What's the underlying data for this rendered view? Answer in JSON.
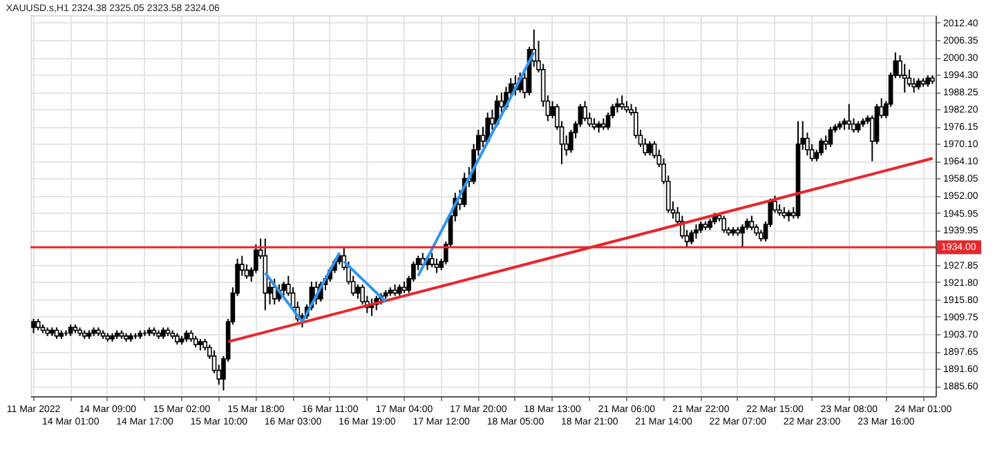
{
  "chart_data": {
    "type": "candlestick",
    "title": "XAUUSD.s,H1  2324.38 2325.05 2323.58 2324.06",
    "categories": [
      "11 Mar 2022",
      null,
      null,
      null,
      null,
      null,
      null,
      null,
      "14 Mar 01:00",
      null,
      null,
      null,
      null,
      null,
      null,
      null,
      "14 Mar 09:00",
      null,
      null,
      null,
      null,
      null,
      null,
      null,
      "14 Mar 17:00",
      null,
      null,
      null,
      null,
      null,
      null,
      null,
      "15 Mar 02:00",
      null,
      null,
      null,
      null,
      null,
      null,
      null,
      "15 Mar 10:00",
      null,
      null,
      null,
      null,
      null,
      null,
      null,
      "15 Mar 18:00",
      null,
      null,
      null,
      null,
      null,
      null,
      null,
      "16 Mar 03:00",
      null,
      null,
      null,
      null,
      null,
      null,
      null,
      "16 Mar 11:00",
      null,
      null,
      null,
      null,
      null,
      null,
      null,
      "16 Mar 19:00",
      null,
      null,
      null,
      null,
      null,
      null,
      null,
      "17 Mar 04:00",
      null,
      null,
      null,
      null,
      null,
      null,
      null,
      "17 Mar 12:00",
      null,
      null,
      null,
      null,
      null,
      null,
      null,
      "17 Mar 20:00",
      null,
      null,
      null,
      null,
      null,
      null,
      null,
      "18 Mar 05:00",
      null,
      null,
      null,
      null,
      null,
      null,
      null,
      "18 Mar 13:00",
      null,
      null,
      null,
      null,
      null,
      null,
      null,
      "18 Mar 21:00",
      null,
      null,
      null,
      null,
      null,
      null,
      null,
      "21 Mar 06:00",
      null,
      null,
      null,
      null,
      null,
      null,
      null,
      "21 Mar 14:00",
      null,
      null,
      null,
      null,
      null,
      null,
      null,
      "21 Mar 22:00",
      null,
      null,
      null,
      null,
      null,
      null,
      null,
      "22 Mar 07:00",
      null,
      null,
      null,
      null,
      null,
      null,
      null,
      "22 Mar 15:00",
      null,
      null,
      null,
      null,
      null,
      null,
      null,
      "22 Mar 23:00",
      null,
      null,
      null,
      null,
      null,
      null,
      null,
      "23 Mar 08:00",
      null,
      null,
      null,
      null,
      null,
      null,
      null,
      "23 Mar 16:00",
      null,
      null,
      null,
      null,
      null,
      null,
      null,
      "24 Mar 01:00",
      null,
      null
    ],
    "ohlc": [
      [
        1906,
        1909,
        1904,
        1908
      ],
      [
        1908,
        1909,
        1905,
        1906
      ],
      [
        1906,
        1907,
        1904,
        1905
      ],
      [
        1905,
        1906,
        1903,
        1904
      ],
      [
        1904,
        1906,
        1903,
        1905
      ],
      [
        1905,
        1906,
        1902,
        1903
      ],
      [
        1903,
        1905,
        1902,
        1904
      ],
      [
        1904,
        1905,
        1903,
        1904
      ],
      [
        1904,
        1907,
        1903,
        1906
      ],
      [
        1906,
        1907,
        1904,
        1905
      ],
      [
        1905,
        1906,
        1903,
        1904
      ],
      [
        1904,
        1905,
        1902,
        1903
      ],
      [
        1903,
        1905,
        1902,
        1904
      ],
      [
        1904,
        1906,
        1903,
        1905
      ],
      [
        1905,
        1906,
        1903,
        1904
      ],
      [
        1904,
        1905,
        1902,
        1903
      ],
      [
        1903,
        1904,
        1901,
        1902
      ],
      [
        1902,
        1904,
        1901,
        1903
      ],
      [
        1903,
        1905,
        1902,
        1904
      ],
      [
        1904,
        1905,
        1902,
        1903
      ],
      [
        1903,
        1904,
        1901,
        1902
      ],
      [
        1902,
        1904,
        1901,
        1903
      ],
      [
        1903,
        1904,
        1902,
        1903
      ],
      [
        1903,
        1905,
        1902,
        1904
      ],
      [
        1904,
        1905,
        1903,
        1904
      ],
      [
        1904,
        1906,
        1903,
        1905
      ],
      [
        1905,
        1906,
        1903,
        1904
      ],
      [
        1904,
        1905,
        1902,
        1903
      ],
      [
        1903,
        1906,
        1902,
        1905
      ],
      [
        1905,
        1906,
        1903,
        1904
      ],
      [
        1904,
        1905,
        1902,
        1903
      ],
      [
        1903,
        1904,
        1900,
        1901
      ],
      [
        1901,
        1903,
        1900,
        1902
      ],
      [
        1902,
        1905,
        1901,
        1904
      ],
      [
        1904,
        1905,
        1901,
        1902
      ],
      [
        1902,
        1903,
        1899,
        1900
      ],
      [
        1900,
        1902,
        1898,
        1901
      ],
      [
        1901,
        1902,
        1898,
        1899
      ],
      [
        1899,
        1900,
        1895,
        1896
      ],
      [
        1896,
        1898,
        1890,
        1891
      ],
      [
        1891,
        1893,
        1886,
        1888
      ],
      [
        1888,
        1896,
        1884,
        1895
      ],
      [
        1895,
        1909,
        1894,
        1908
      ],
      [
        1908,
        1920,
        1907,
        1918
      ],
      [
        1918,
        1930,
        1917,
        1928
      ],
      [
        1928,
        1931,
        1924,
        1926
      ],
      [
        1926,
        1928,
        1923,
        1924
      ],
      [
        1924,
        1927,
        1922,
        1926
      ],
      [
        1926,
        1935,
        1925,
        1933
      ],
      [
        1933,
        1937,
        1930,
        1931
      ],
      [
        1931,
        1937,
        1912,
        1918
      ],
      [
        1918,
        1922,
        1914,
        1920
      ],
      [
        1920,
        1923,
        1914,
        1916
      ],
      [
        1916,
        1921,
        1915,
        1919
      ],
      [
        1919,
        1922,
        1917,
        1921
      ],
      [
        1921,
        1924,
        1917,
        1918
      ],
      [
        1918,
        1920,
        1912,
        1913
      ],
      [
        1913,
        1915,
        1908,
        1909
      ],
      [
        1909,
        1911,
        1906,
        1910
      ],
      [
        1910,
        1914,
        1909,
        1913
      ],
      [
        1913,
        1922,
        1912,
        1920
      ],
      [
        1920,
        1922,
        1914,
        1916
      ],
      [
        1916,
        1922,
        1915,
        1921
      ],
      [
        1921,
        1924,
        1919,
        1923
      ],
      [
        1923,
        1927,
        1922,
        1926
      ],
      [
        1926,
        1930,
        1925,
        1929
      ],
      [
        1929,
        1932,
        1928,
        1931
      ],
      [
        1931,
        1934,
        1926,
        1927
      ],
      [
        1927,
        1929,
        1921,
        1922
      ],
      [
        1922,
        1924,
        1917,
        1918
      ],
      [
        1918,
        1921,
        1916,
        1920
      ],
      [
        1920,
        1921,
        1914,
        1915
      ],
      [
        1915,
        1917,
        1911,
        1913
      ],
      [
        1913,
        1916,
        1910,
        1914
      ],
      [
        1914,
        1917,
        1912,
        1916
      ],
      [
        1916,
        1918,
        1914,
        1917
      ],
      [
        1917,
        1919,
        1916,
        1918
      ],
      [
        1918,
        1920,
        1917,
        1919
      ],
      [
        1919,
        1921,
        1917,
        1918
      ],
      [
        1918,
        1921,
        1917,
        1920
      ],
      [
        1920,
        1922,
        1918,
        1919
      ],
      [
        1919,
        1924,
        1918,
        1923
      ],
      [
        1923,
        1929,
        1922,
        1928
      ],
      [
        1928,
        1931,
        1926,
        1930
      ],
      [
        1930,
        1932,
        1927,
        1928
      ],
      [
        1928,
        1931,
        1926,
        1930
      ],
      [
        1930,
        1932,
        1927,
        1928
      ],
      [
        1928,
        1930,
        1925,
        1927
      ],
      [
        1927,
        1930,
        1926,
        1929
      ],
      [
        1929,
        1936,
        1928,
        1935
      ],
      [
        1935,
        1946,
        1934,
        1945
      ],
      [
        1945,
        1953,
        1943,
        1951
      ],
      [
        1951,
        1954,
        1947,
        1949
      ],
      [
        1949,
        1960,
        1948,
        1958
      ],
      [
        1958,
        1962,
        1955,
        1957
      ],
      [
        1957,
        1970,
        1956,
        1968
      ],
      [
        1968,
        1975,
        1966,
        1973
      ],
      [
        1973,
        1976,
        1969,
        1971
      ],
      [
        1971,
        1981,
        1970,
        1979
      ],
      [
        1979,
        1982,
        1975,
        1977
      ],
      [
        1977,
        1987,
        1976,
        1985
      ],
      [
        1985,
        1988,
        1981,
        1983
      ],
      [
        1983,
        1990,
        1982,
        1988
      ],
      [
        1988,
        1993,
        1986,
        1991
      ],
      [
        1991,
        1994,
        1987,
        1989
      ],
      [
        1989,
        1995,
        1988,
        1993
      ],
      [
        1993,
        1995,
        1986,
        1988
      ],
      [
        1988,
        2004,
        1987,
        2003
      ],
      [
        2003,
        2010,
        1997,
        1999
      ],
      [
        1999,
        2006,
        1995,
        1996
      ],
      [
        1996,
        1998,
        1983,
        1985
      ],
      [
        1985,
        1987,
        1978,
        1980
      ],
      [
        1980,
        1985,
        1979,
        1983
      ],
      [
        1983,
        1984,
        1975,
        1976
      ],
      [
        1976,
        1978,
        1963,
        1970
      ],
      [
        1970,
        1973,
        1966,
        1968
      ],
      [
        1968,
        1975,
        1967,
        1974
      ],
      [
        1974,
        1978,
        1972,
        1977
      ],
      [
        1977,
        1984,
        1976,
        1983
      ],
      [
        1983,
        1985,
        1978,
        1979
      ],
      [
        1979,
        1981,
        1976,
        1977
      ],
      [
        1977,
        1979,
        1975,
        1976
      ],
      [
        1976,
        1978,
        1974,
        1977
      ],
      [
        1977,
        1979,
        1975,
        1976
      ],
      [
        1976,
        1981,
        1975,
        1980
      ],
      [
        1980,
        1984,
        1979,
        1983
      ],
      [
        1983,
        1986,
        1981,
        1984
      ],
      [
        1984,
        1987,
        1982,
        1983
      ],
      [
        1983,
        1985,
        1981,
        1982
      ],
      [
        1982,
        1984,
        1980,
        1981
      ],
      [
        1981,
        1983,
        1972,
        1973
      ],
      [
        1973,
        1975,
        1969,
        1970
      ],
      [
        1970,
        1972,
        1966,
        1967
      ],
      [
        1967,
        1971,
        1966,
        1970
      ],
      [
        1970,
        1971,
        1965,
        1966
      ],
      [
        1966,
        1968,
        1962,
        1963
      ],
      [
        1963,
        1965,
        1956,
        1957
      ],
      [
        1957,
        1959,
        1946,
        1947
      ],
      [
        1947,
        1950,
        1944,
        1946
      ],
      [
        1946,
        1948,
        1942,
        1943
      ],
      [
        1943,
        1945,
        1937,
        1938
      ],
      [
        1938,
        1940,
        1934,
        1936
      ],
      [
        1936,
        1940,
        1935,
        1939
      ],
      [
        1939,
        1942,
        1937,
        1940
      ],
      [
        1940,
        1943,
        1939,
        1942
      ],
      [
        1942,
        1943,
        1940,
        1941
      ],
      [
        1941,
        1944,
        1940,
        1943
      ],
      [
        1943,
        1946,
        1942,
        1945
      ],
      [
        1945,
        1946,
        1943,
        1944
      ],
      [
        1944,
        1945,
        1939,
        1940
      ],
      [
        1940,
        1941,
        1938,
        1939
      ],
      [
        1939,
        1941,
        1938,
        1940
      ],
      [
        1940,
        1941,
        1938,
        1939
      ],
      [
        1939,
        1942,
        1934,
        1941
      ],
      [
        1941,
        1944,
        1940,
        1943
      ],
      [
        1943,
        1945,
        1940,
        1941
      ],
      [
        1941,
        1942,
        1938,
        1939
      ],
      [
        1939,
        1940,
        1936,
        1937
      ],
      [
        1937,
        1943,
        1936,
        1942
      ],
      [
        1942,
        1951,
        1941,
        1950
      ],
      [
        1950,
        1952,
        1946,
        1947
      ],
      [
        1947,
        1949,
        1945,
        1946
      ],
      [
        1946,
        1948,
        1944,
        1945
      ],
      [
        1945,
        1947,
        1943,
        1946
      ],
      [
        1946,
        1948,
        1944,
        1945
      ],
      [
        1945,
        1978,
        1944,
        1970
      ],
      [
        1970,
        1978,
        1968,
        1972
      ],
      [
        1972,
        1974,
        1966,
        1968
      ],
      [
        1968,
        1970,
        1964,
        1965
      ],
      [
        1965,
        1968,
        1964,
        1967
      ],
      [
        1967,
        1972,
        1966,
        1971
      ],
      [
        1971,
        1973,
        1968,
        1970
      ],
      [
        1970,
        1976,
        1969,
        1975
      ],
      [
        1975,
        1977,
        1974,
        1976
      ],
      [
        1976,
        1978,
        1975,
        1977
      ],
      [
        1977,
        1979,
        1975,
        1978
      ],
      [
        1978,
        1984,
        1975,
        1977
      ],
      [
        1977,
        1979,
        1974,
        1975
      ],
      [
        1975,
        1978,
        1974,
        1977
      ],
      [
        1977,
        1979,
        1976,
        1978
      ],
      [
        1978,
        1980,
        1977,
        1979
      ],
      [
        1979,
        1980,
        1964,
        1971
      ],
      [
        1971,
        1984,
        1970,
        1983
      ],
      [
        1983,
        1986,
        1979,
        1980
      ],
      [
        1980,
        1985,
        1979,
        1984
      ],
      [
        1984,
        1995,
        1983,
        1994
      ],
      [
        1994,
        2002,
        1993,
        1999
      ],
      [
        1999,
        2001,
        1993,
        1994
      ],
      [
        1994,
        1998,
        1988,
        1993
      ],
      [
        1993,
        1996,
        1990,
        1991
      ],
      [
        1991,
        1993,
        1988,
        1990
      ],
      [
        1990,
        1993,
        1989,
        1992
      ],
      [
        1992,
        1993,
        1990,
        1991
      ],
      [
        1991,
        1994,
        1990,
        1993
      ],
      [
        1993,
        1994,
        1991,
        1992
      ]
    ],
    "series": [
      {
        "type": "line",
        "color": "#e8262b",
        "values": [
          null,
          null,
          null,
          null,
          null,
          null,
          null,
          null,
          null,
          null,
          null,
          null,
          null,
          null,
          null,
          null,
          null,
          null,
          null,
          null,
          null,
          null,
          null,
          null,
          null,
          null,
          null,
          null,
          null,
          null,
          null,
          null,
          null,
          null,
          null,
          null,
          null,
          null,
          null,
          null,
          null,
          null,
          1901,
          null,
          null,
          null,
          null,
          null,
          null,
          null,
          null,
          null,
          null,
          null,
          null,
          null,
          null,
          null,
          null,
          null,
          null,
          null,
          null,
          null,
          null,
          null,
          null,
          null,
          null,
          null,
          null,
          null,
          null,
          null,
          null,
          null,
          null,
          null,
          null,
          null,
          null,
          null,
          null,
          null,
          null,
          null,
          null,
          null,
          null,
          null,
          null,
          null,
          null,
          null,
          null,
          null,
          null,
          null,
          null,
          null,
          null,
          null,
          null,
          null,
          null,
          null,
          null,
          null,
          null,
          null,
          null,
          null,
          null,
          null,
          null,
          null,
          null,
          null,
          null,
          null,
          null,
          null,
          null,
          null,
          null,
          null,
          null,
          null,
          null,
          null,
          null,
          null,
          null,
          null,
          null,
          null,
          null,
          null,
          null,
          null,
          null,
          null,
          null,
          null,
          null,
          null,
          null,
          null,
          null,
          null,
          null,
          null,
          null,
          null,
          null,
          null,
          null,
          null,
          null,
          null,
          null,
          null,
          null,
          null,
          null,
          null,
          null,
          null,
          null,
          null,
          null,
          null,
          null,
          null,
          null,
          null,
          null,
          null,
          null,
          null,
          null,
          null,
          null,
          null,
          null,
          null,
          null,
          null,
          null,
          null,
          null,
          null,
          null,
          null,
          1965
        ]
      },
      {
        "type": "line",
        "color": "#2f96f0",
        "values": [
          null,
          null,
          null,
          null,
          null,
          null,
          null,
          null,
          null,
          null,
          null,
          null,
          null,
          null,
          null,
          null,
          null,
          null,
          null,
          null,
          null,
          null,
          null,
          null,
          null,
          null,
          null,
          null,
          null,
          null,
          null,
          null,
          null,
          null,
          null,
          null,
          null,
          null,
          null,
          null,
          null,
          null,
          null,
          null,
          null,
          null,
          null,
          null,
          null,
          null,
          1925,
          null,
          null,
          null,
          null,
          null,
          null,
          null,
          1908,
          null,
          null,
          null,
          null,
          null,
          null,
          null,
          null,
          null,
          null,
          null,
          null,
          null,
          null,
          null,
          null,
          null,
          null,
          null,
          null,
          null,
          null,
          null,
          null,
          null,
          null,
          null,
          null,
          null,
          null,
          null,
          null,
          null,
          null,
          null,
          null,
          null,
          null,
          null,
          null,
          null,
          null,
          null,
          null,
          null,
          null,
          null,
          null,
          null,
          null,
          null,
          null,
          null,
          null,
          null,
          null,
          null,
          null,
          null,
          null,
          null,
          null,
          null,
          null,
          null,
          null,
          null,
          null,
          null,
          null,
          null,
          null,
          null,
          null,
          null,
          null,
          null,
          null,
          null,
          null,
          null,
          null,
          null,
          null,
          null,
          null,
          null,
          null,
          null,
          null,
          null,
          null,
          null,
          null,
          null,
          null,
          null,
          null,
          null,
          null,
          null,
          null,
          null,
          null,
          null,
          null,
          null,
          null,
          null,
          null,
          null,
          null,
          null,
          null,
          null,
          null,
          null,
          null,
          null,
          null,
          null,
          null,
          null,
          null,
          null,
          null,
          null,
          null,
          null,
          null,
          null,
          null,
          null,
          null,
          null,
          null
        ]
      },
      {
        "type": "line",
        "color": "#2f96f0",
        "values": [
          null,
          null,
          null,
          null,
          null,
          null,
          null,
          null,
          null,
          null,
          null,
          null,
          null,
          null,
          null,
          null,
          null,
          null,
          null,
          null,
          null,
          null,
          null,
          null,
          null,
          null,
          null,
          null,
          null,
          null,
          null,
          null,
          null,
          null,
          null,
          null,
          null,
          null,
          null,
          null,
          null,
          null,
          null,
          null,
          null,
          null,
          null,
          null,
          null,
          null,
          null,
          null,
          null,
          null,
          null,
          null,
          null,
          null,
          1908,
          null,
          null,
          null,
          null,
          null,
          null,
          null,
          1932,
          null,
          null,
          null,
          null,
          null,
          null,
          null,
          null,
          null,
          null,
          null,
          null,
          null,
          null,
          null,
          null,
          null,
          null,
          null,
          null,
          null,
          null,
          null,
          null,
          null,
          null,
          null,
          null,
          null,
          null,
          null,
          null,
          null,
          null,
          null,
          null,
          null,
          null,
          null,
          null,
          null,
          null,
          null,
          null,
          null,
          null,
          null,
          null,
          null,
          null,
          null,
          null,
          null,
          null,
          null,
          null,
          null,
          null,
          null,
          null,
          null,
          null,
          null,
          null,
          null,
          null,
          null,
          null,
          null,
          null,
          null,
          null,
          null,
          null,
          null,
          null,
          null,
          null,
          null,
          null,
          null,
          null,
          null,
          null,
          null,
          null,
          null,
          null,
          null,
          null,
          null,
          null,
          null,
          null,
          null,
          null,
          null,
          null,
          null,
          null,
          null,
          null,
          null,
          null,
          null,
          null,
          null,
          null,
          null,
          null,
          null,
          null,
          null,
          null,
          null,
          null,
          null,
          null,
          null,
          null,
          null,
          null,
          null,
          null,
          null,
          null,
          null,
          null
        ]
      },
      {
        "type": "line",
        "color": "#2f96f0",
        "values": [
          null,
          null,
          null,
          null,
          null,
          null,
          null,
          null,
          null,
          null,
          null,
          null,
          null,
          null,
          null,
          null,
          null,
          null,
          null,
          null,
          null,
          null,
          null,
          null,
          null,
          null,
          null,
          null,
          null,
          null,
          null,
          null,
          null,
          null,
          null,
          null,
          null,
          null,
          null,
          null,
          null,
          null,
          null,
          null,
          null,
          null,
          null,
          null,
          null,
          null,
          null,
          null,
          null,
          null,
          null,
          null,
          null,
          null,
          null,
          null,
          null,
          null,
          null,
          null,
          null,
          null,
          null,
          1929,
          null,
          null,
          null,
          null,
          null,
          null,
          null,
          null,
          1915,
          null,
          null,
          null,
          null,
          null,
          null,
          null,
          null,
          null,
          null,
          null,
          null,
          null,
          null,
          null,
          null,
          null,
          null,
          null,
          null,
          null,
          null,
          null,
          null,
          null,
          null,
          null,
          null,
          null,
          null,
          null,
          null,
          null,
          null,
          null,
          null,
          null,
          null,
          null,
          null,
          null,
          null,
          null,
          null,
          null,
          null,
          null,
          null,
          null,
          null,
          null,
          null,
          null,
          null,
          null,
          null,
          null,
          null,
          null,
          null,
          null,
          null,
          null,
          null,
          null,
          null,
          null,
          null,
          null,
          null,
          null,
          null,
          null,
          null,
          null,
          null,
          null,
          null,
          null,
          null,
          null,
          null,
          null,
          null,
          null,
          null,
          null,
          null,
          null,
          null,
          null,
          null,
          null,
          null,
          null,
          null,
          null,
          null,
          null,
          null,
          null,
          null,
          null,
          null,
          null,
          null,
          null,
          null,
          null,
          null,
          null,
          null,
          null,
          null,
          null,
          null,
          null,
          null
        ]
      },
      {
        "type": "line",
        "color": "#2f96f0",
        "values": [
          null,
          null,
          null,
          null,
          null,
          null,
          null,
          null,
          null,
          null,
          null,
          null,
          null,
          null,
          null,
          null,
          null,
          null,
          null,
          null,
          null,
          null,
          null,
          null,
          null,
          null,
          null,
          null,
          null,
          null,
          null,
          null,
          null,
          null,
          null,
          null,
          null,
          null,
          null,
          null,
          null,
          null,
          null,
          null,
          null,
          null,
          null,
          null,
          null,
          null,
          null,
          null,
          null,
          null,
          null,
          null,
          null,
          null,
          null,
          null,
          null,
          null,
          null,
          null,
          null,
          null,
          null,
          null,
          null,
          null,
          null,
          null,
          null,
          null,
          null,
          null,
          null,
          null,
          null,
          null,
          null,
          null,
          null,
          1924,
          null,
          null,
          null,
          null,
          null,
          null,
          null,
          null,
          null,
          null,
          null,
          null,
          null,
          null,
          null,
          null,
          null,
          null,
          null,
          null,
          null,
          null,
          null,
          null,
          2002,
          null,
          null,
          null,
          null,
          null,
          null,
          null,
          null,
          null,
          null,
          null,
          null,
          null,
          null,
          null,
          null,
          null,
          null,
          null,
          null,
          null,
          null,
          null,
          null,
          null,
          null,
          null,
          null,
          null,
          null,
          null,
          null,
          null,
          null,
          null,
          null,
          null,
          null,
          null,
          null,
          null,
          null,
          null,
          null,
          null,
          null,
          null,
          null,
          null,
          null,
          null,
          null,
          null,
          null,
          null,
          null,
          null,
          null,
          null,
          null,
          null,
          null,
          null,
          null,
          null,
          null,
          null,
          null,
          null,
          null,
          null,
          null,
          null,
          null,
          null,
          null,
          null,
          null,
          null,
          null,
          null,
          null,
          null,
          null,
          null,
          null
        ]
      }
    ],
    "ref_lines": [
      {
        "axis": "y",
        "value": 1934,
        "label": "1934.00",
        "color": "#e8262b"
      }
    ],
    "ylim": [
      1882,
      2015
    ],
    "yticks": [
      {
        "value": 2012.4,
        "label": "2012.40"
      },
      {
        "value": 2006.35,
        "label": "2006.35"
      },
      {
        "value": 2000.3,
        "label": "2000.30"
      },
      {
        "value": 1994.3,
        "label": "1994.30"
      },
      {
        "value": 1988.25,
        "label": "1988.25"
      },
      {
        "value": 1982.2,
        "label": "1982.20"
      },
      {
        "value": 1976.15,
        "label": "1976.15"
      },
      {
        "value": 1970.1,
        "label": "1970.10"
      },
      {
        "value": 1964.1,
        "label": "1964.10"
      },
      {
        "value": 1958.05,
        "label": "1958.05"
      },
      {
        "value": 1952,
        "label": "1952.00"
      },
      {
        "value": 1945.95,
        "label": "1945.95"
      },
      {
        "value": 1939.95,
        "label": "1939.95"
      },
      {
        "value": 1927.85,
        "label": "1927.85"
      },
      {
        "value": 1921.8,
        "label": "1921.80"
      },
      {
        "value": 1915.8,
        "label": "1915.80"
      },
      {
        "value": 1909.75,
        "label": "1909.75"
      },
      {
        "value": 1903.7,
        "label": "1903.70"
      },
      {
        "value": 1897.65,
        "label": "1897.65"
      },
      {
        "value": 1891.6,
        "label": "1891.60"
      },
      {
        "value": 1885.6,
        "label": "1885.60"
      }
    ],
    "grid": true,
    "legend": false
  }
}
